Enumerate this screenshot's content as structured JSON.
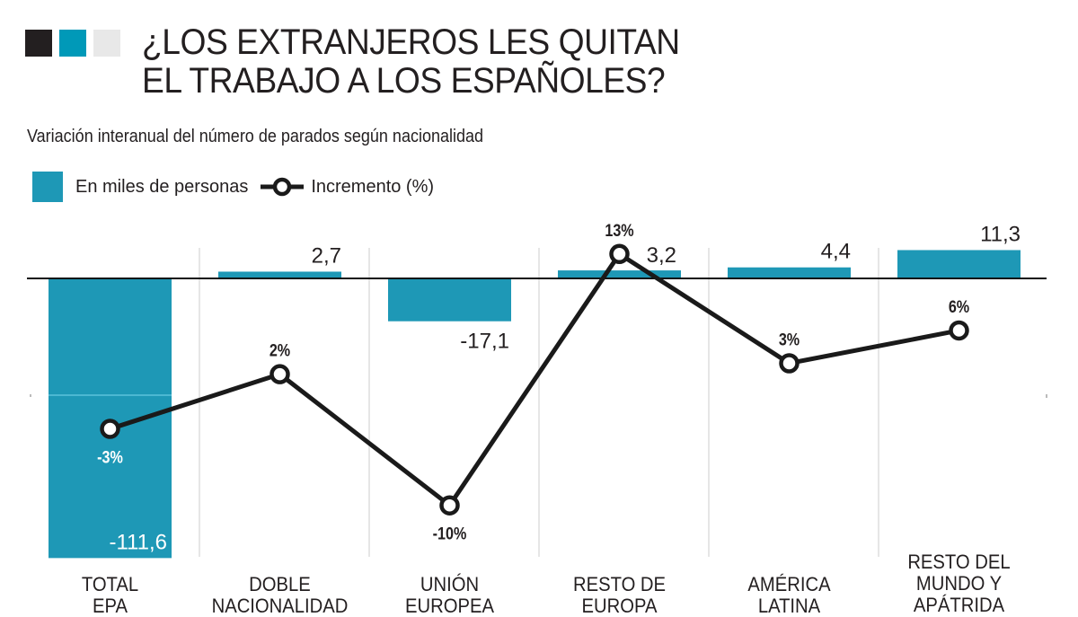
{
  "header": {
    "title_line1": "¿LOS EXTRANJEROS LES QUITAN",
    "title_line2": "EL TRABAJO A LOS ESPAÑOLES?",
    "subtitle": "Variación interanual del número de parados según nacionalidad",
    "square_colors": [
      "#231f20",
      "#0099b8",
      "#e8e8e8"
    ]
  },
  "legend": {
    "bar_label": "En miles de personas",
    "line_label": "Incremento (%)"
  },
  "colors": {
    "bar": "#1e98b6",
    "line": "#1a1a1a",
    "marker_fill": "#ffffff",
    "text": "#231f20",
    "separator": "#e6e6e6"
  },
  "chart_data": {
    "type": "bar",
    "title": "¿LOS EXTRANJEROS LES QUITAN EL TRABAJO A LOS ESPAÑOLES?",
    "subtitle": "Variación interanual del número de parados según nacionalidad",
    "xlabel": "",
    "ylabel": "",
    "grid": false,
    "legend_position": "top-left",
    "categories": [
      [
        "TOTAL",
        "EPA"
      ],
      [
        "DOBLE",
        "NACIONALIDAD"
      ],
      [
        "UNIÓN",
        "EUROPEA"
      ],
      [
        "RESTO DE",
        "EUROPA"
      ],
      [
        "AMÉRICA",
        "LATINA"
      ],
      [
        "RESTO DEL",
        "MUNDO Y",
        "APÁTRIDA"
      ]
    ],
    "series": [
      {
        "name": "En miles de personas",
        "type": "bar",
        "values": [
          -111.6,
          2.7,
          -17.1,
          3.2,
          4.4,
          11.3
        ],
        "labels": [
          "-111,6",
          "2,7",
          "-17,1",
          "3,2",
          "4,4",
          "11,3"
        ],
        "ylim": [
          -111.6,
          11.3
        ]
      },
      {
        "name": "Incremento (%)",
        "type": "line",
        "values": [
          -3,
          2,
          -10,
          13,
          3,
          6
        ],
        "labels": [
          "-3%",
          "2%",
          "-10%",
          "13%",
          "3%",
          "6%"
        ],
        "ylim": [
          -10,
          13
        ]
      }
    ]
  }
}
